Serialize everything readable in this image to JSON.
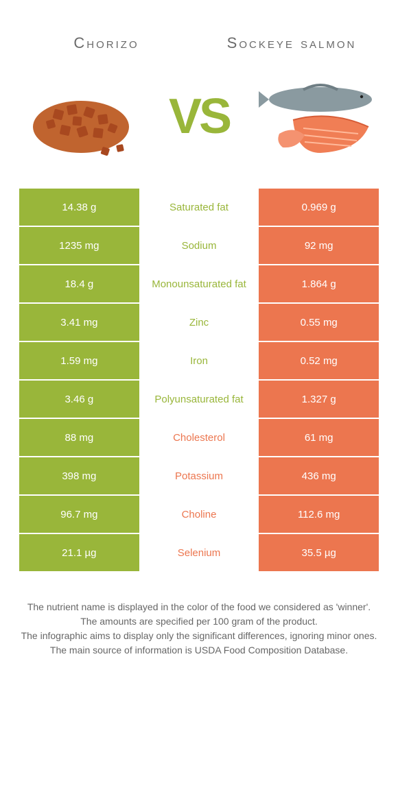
{
  "titles": {
    "left": "Chorizo",
    "right": "Sockeye salmon"
  },
  "vs_label": "VS",
  "colors": {
    "left_bg": "#99b63a",
    "right_bg": "#ec764f",
    "left_text": "#99b63a",
    "right_text": "#ec764f"
  },
  "rows": [
    {
      "left": "14.38 g",
      "label": "Saturated fat",
      "right": "0.969 g",
      "winner": "left"
    },
    {
      "left": "1235 mg",
      "label": "Sodium",
      "right": "92 mg",
      "winner": "left"
    },
    {
      "left": "18.4 g",
      "label": "Monounsaturated fat",
      "right": "1.864 g",
      "winner": "left"
    },
    {
      "left": "3.41 mg",
      "label": "Zinc",
      "right": "0.55 mg",
      "winner": "left"
    },
    {
      "left": "1.59 mg",
      "label": "Iron",
      "right": "0.52 mg",
      "winner": "left"
    },
    {
      "left": "3.46 g",
      "label": "Polyunsaturated fat",
      "right": "1.327 g",
      "winner": "left"
    },
    {
      "left": "88 mg",
      "label": "Cholesterol",
      "right": "61 mg",
      "winner": "right"
    },
    {
      "left": "398 mg",
      "label": "Potassium",
      "right": "436 mg",
      "winner": "right"
    },
    {
      "left": "96.7 mg",
      "label": "Choline",
      "right": "112.6 mg",
      "winner": "right"
    },
    {
      "left": "21.1 µg",
      "label": "Selenium",
      "right": "35.5 µg",
      "winner": "right"
    }
  ],
  "caption": {
    "l1": "The nutrient name is displayed in the color of the food we considered as 'winner'.",
    "l2": "The amounts are specified per 100 gram of the product.",
    "l3": "The infographic aims to display only the significant differences, ignoring minor ones.",
    "l4": "The main source of information is USDA Food Composition Database."
  }
}
